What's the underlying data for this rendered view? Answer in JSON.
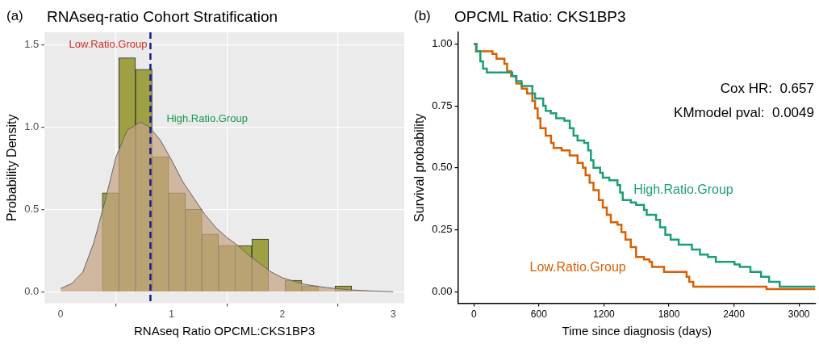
{
  "chart_data": [
    {
      "type": "histogram",
      "title": "RNAseq-ratio Cohort Stratification",
      "xlabel": "RNAseq Ratio OPCML:CKS1BP3",
      "ylabel": "Probability Density",
      "series": [
        {
          "color": "#9ea142",
          "bins": [
            0.375,
            0.525,
            0.675,
            0.825,
            0.975,
            1.125,
            1.275,
            1.425,
            1.575,
            1.725,
            1.875,
            2.025,
            2.175,
            2.325,
            2.475,
            2.625
          ],
          "values": [
            0.6,
            1.42,
            1.35,
            0.82,
            0.6,
            0.5,
            0.35,
            0.28,
            0.28,
            0.32,
            0,
            0.07,
            0.035,
            0,
            0.035
          ]
        },
        {
          "type": "area",
          "color": "#c4a484",
          "x": [
            0,
            0.1,
            0.2,
            0.3,
            0.4,
            0.5,
            0.6,
            0.72,
            0.8,
            0.9,
            1.0,
            1.1,
            1.2,
            1.3,
            1.4,
            1.5,
            1.6,
            1.7,
            1.8,
            1.9,
            2.0,
            2.2,
            2.4,
            2.6,
            2.8,
            3.0
          ],
          "values": [
            0.02,
            0.05,
            0.12,
            0.3,
            0.55,
            0.82,
            0.98,
            1.03,
            1.0,
            0.92,
            0.8,
            0.67,
            0.57,
            0.47,
            0.39,
            0.33,
            0.28,
            0.22,
            0.17,
            0.12,
            0.085,
            0.045,
            0.025,
            0.012,
            0.005,
            0
          ]
        }
      ],
      "xlim": [
        -0.145,
        3.1
      ],
      "xticks": [
        0,
        1,
        2,
        3
      ],
      "ylim": [
        -0.07,
        1.575
      ],
      "yticks": [
        {
          "value": 0,
          "label": "0.0"
        },
        {
          "value": 0.5,
          "label": "0.5"
        },
        {
          "value": 1,
          "label": "1.0"
        },
        {
          "value": 1.5,
          "label": "1.5"
        }
      ],
      "grid": true,
      "legend": false,
      "ref_lines": [
        {
          "axis": "x",
          "value": 0.81,
          "color": "#1a1a8c",
          "line_style": "dashed"
        }
      ],
      "annotations": [
        "(a)",
        "Low.Ratio.Group",
        "High.Ratio.Group"
      ]
    },
    {
      "type": "step",
      "title": "OPCML Ratio: CKS1BP3",
      "xlabel": "Time since diagnosis (days)",
      "ylabel": "Survival probability",
      "series": [
        {
          "name": "High.Ratio.Group",
          "color": "#1b9e77",
          "x": [
            0,
            25,
            60,
            85,
            120,
            355,
            390,
            440,
            540,
            565,
            640,
            663,
            710,
            760,
            835,
            885,
            920,
            957,
            1018,
            1055,
            1080,
            1104,
            1165,
            1190,
            1250,
            1325,
            1350,
            1374,
            1448,
            1497,
            1570,
            1595,
            1681,
            1718,
            1767,
            1816,
            1890,
            2012,
            2086,
            2160,
            2233,
            2405,
            2454,
            2552,
            2650,
            2724,
            2822,
            3150
          ],
          "values": [
            1.0,
            0.97,
            0.93,
            0.9,
            0.885,
            0.87,
            0.85,
            0.83,
            0.8,
            0.78,
            0.75,
            0.73,
            0.72,
            0.7,
            0.69,
            0.66,
            0.63,
            0.61,
            0.6,
            0.57,
            0.53,
            0.5,
            0.48,
            0.46,
            0.45,
            0.43,
            0.4,
            0.37,
            0.36,
            0.35,
            0.33,
            0.31,
            0.29,
            0.26,
            0.23,
            0.21,
            0.19,
            0.17,
            0.15,
            0.14,
            0.12,
            0.11,
            0.1,
            0.08,
            0.06,
            0.04,
            0.02,
            0.02
          ]
        },
        {
          "name": "Low.Ratio.Group",
          "color": "#d95f02",
          "x": [
            0,
            20,
            172,
            209,
            282,
            307,
            344,
            393,
            442,
            491,
            540,
            565,
            589,
            614,
            663,
            712,
            736,
            810,
            884,
            957,
            1006,
            1031,
            1068,
            1104,
            1153,
            1190,
            1227,
            1264,
            1325,
            1362,
            1399,
            1448,
            1497,
            1570,
            1620,
            1644,
            1755,
            1963,
            1988,
            2025,
            2700,
            3150
          ],
          "values": [
            1.0,
            0.97,
            0.96,
            0.94,
            0.92,
            0.89,
            0.87,
            0.84,
            0.82,
            0.8,
            0.77,
            0.74,
            0.7,
            0.66,
            0.63,
            0.6,
            0.58,
            0.57,
            0.55,
            0.52,
            0.5,
            0.47,
            0.44,
            0.41,
            0.37,
            0.34,
            0.31,
            0.28,
            0.27,
            0.24,
            0.21,
            0.18,
            0.14,
            0.13,
            0.12,
            0.1,
            0.08,
            0.06,
            0.04,
            0.02,
            0.01,
            0.01
          ]
        }
      ],
      "xlim": [
        -147,
        3155
      ],
      "xticks": [
        0,
        600,
        1200,
        1800,
        2400,
        3000
      ],
      "ylim": [
        -0.047,
        1.047
      ],
      "yticks": [
        {
          "value": 0,
          "label": "0.00"
        },
        {
          "value": 0.25,
          "label": "0.25"
        },
        {
          "value": 0.5,
          "label": "0.50"
        },
        {
          "value": 0.75,
          "label": "0.75"
        },
        {
          "value": 1,
          "label": "1.00"
        }
      ],
      "grid": false,
      "legend": false,
      "marker": "none",
      "annotations": [
        "(b)",
        "Cox HR:  0.657",
        "KMmodel pval:  0.0049"
      ]
    }
  ]
}
